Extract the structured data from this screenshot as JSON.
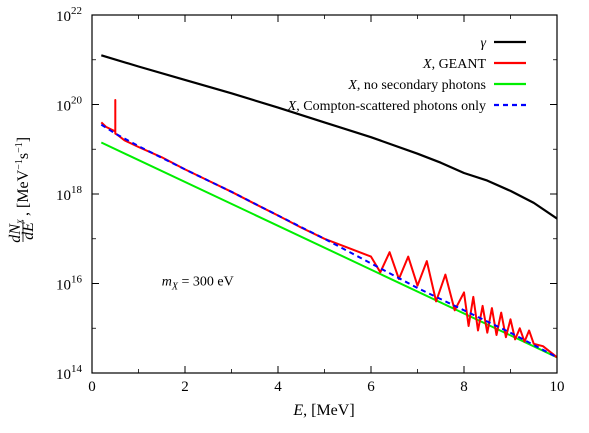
{
  "chart_data": {
    "type": "line",
    "title": "",
    "xlabel": {
      "var": "E",
      "rest": ", [MeV]"
    },
    "ylabel": {
      "num": "dN",
      "num_sub": "X",
      "den": "dE",
      "unit": ", [MeV",
      "unit_exp": "−1",
      "unit_mid": "s",
      "unit_exp2": "−1",
      "unit_end": "]"
    },
    "x_scale": "linear",
    "y_scale": "log",
    "xlim": [
      0,
      10
    ],
    "ylim": [
      100000000000000.0,
      1e+22
    ],
    "x_ticks": [
      0,
      2,
      4,
      6,
      8,
      10
    ],
    "x_tick_labels": [
      "0",
      "2",
      "4",
      "6",
      "8",
      "10"
    ],
    "y_ticks_exp": [
      14,
      16,
      18,
      20,
      22
    ],
    "y_tick_labels": [
      {
        "base": "10",
        "exp": "14"
      },
      {
        "base": "10",
        "exp": "16"
      },
      {
        "base": "10",
        "exp": "18"
      },
      {
        "base": "10",
        "exp": "20"
      },
      {
        "base": "10",
        "exp": "22"
      }
    ],
    "grid": false,
    "legend_position": "top-right",
    "annotation": {
      "var": "m",
      "sub": "X",
      "rest": " = 300 eV",
      "at": [
        1.5,
        15.95
      ]
    },
    "series": [
      {
        "name": "γ",
        "name_parts": {
          "italic": "γ",
          "rest": ""
        },
        "color": "#000000",
        "dash": "solid",
        "x": [
          0.2,
          1,
          2,
          3,
          4,
          5,
          6,
          7,
          7.5,
          8,
          8.5,
          9,
          9.5,
          10
        ],
        "log10_y": [
          21.1,
          20.85,
          20.55,
          20.25,
          19.93,
          19.6,
          19.27,
          18.9,
          18.7,
          18.47,
          18.3,
          18.07,
          17.8,
          17.45
        ]
      },
      {
        "name": "X, GEANT",
        "name_parts": {
          "italic": "X",
          "rest": ", GEANT"
        },
        "color": "#ff0000",
        "dash": "solid",
        "x": [
          0.2,
          0.3,
          0.4,
          0.5,
          0.5,
          0.5,
          0.55,
          0.7,
          1.0,
          1.5,
          2.0,
          2.5,
          3.0,
          3.5,
          4.0,
          4.5,
          5.0,
          5.5,
          6.0,
          6.2,
          6.4,
          6.6,
          6.8,
          7.0,
          7.2,
          7.4,
          7.6,
          7.8,
          8.0,
          8.1,
          8.2,
          8.3,
          8.4,
          8.5,
          8.6,
          8.7,
          8.8,
          8.9,
          9.0,
          9.1,
          9.2,
          9.3,
          9.4,
          9.5,
          9.7,
          10.0
        ],
        "log10_y": [
          19.6,
          19.5,
          19.45,
          19.4,
          20.1,
          19.35,
          19.32,
          19.2,
          19.05,
          18.82,
          18.55,
          18.3,
          18.05,
          17.78,
          17.52,
          17.25,
          17.0,
          16.8,
          16.6,
          16.25,
          16.7,
          16.1,
          16.6,
          15.95,
          16.5,
          15.6,
          16.2,
          15.4,
          15.8,
          15.05,
          15.7,
          14.95,
          15.5,
          14.9,
          15.45,
          14.85,
          15.35,
          14.8,
          15.2,
          14.75,
          15.0,
          14.7,
          14.95,
          14.65,
          14.6,
          14.35
        ]
      },
      {
        "name": "X, no secondary photons",
        "name_parts": {
          "italic": "X",
          "rest": ", no secondary photons"
        },
        "color": "#00ee00",
        "dash": "solid",
        "x": [
          0.2,
          10
        ],
        "log10_y": [
          19.15,
          14.35
        ]
      },
      {
        "name": "X, Compton-scattered photons only",
        "name_parts": {
          "italic": "X",
          "rest": ", Compton-scattered photons only"
        },
        "color": "#0000ff",
        "dash": "dashed",
        "x": [
          0.2,
          0.5,
          1.0,
          2.0,
          3.0,
          4.0,
          5.0,
          6.0,
          7.0,
          8.0,
          9.0,
          10.0
        ],
        "log10_y": [
          19.55,
          19.35,
          19.07,
          18.55,
          18.05,
          17.52,
          17.0,
          16.45,
          15.9,
          15.4,
          14.9,
          14.35
        ]
      }
    ]
  }
}
